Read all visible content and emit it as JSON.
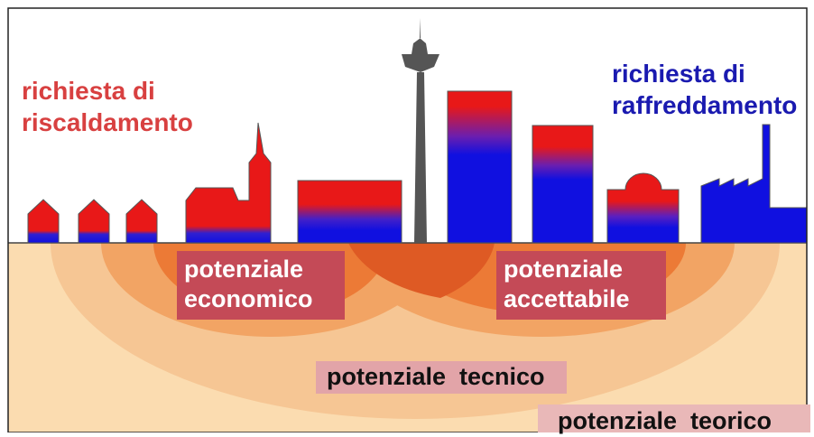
{
  "labels": {
    "heating": [
      "richiesta di",
      "riscaldamento"
    ],
    "cooling": [
      "richiesta di",
      "raffreddamento"
    ],
    "economic": [
      "potenziale",
      "economico"
    ],
    "acceptable": [
      "potenziale",
      "accettabile"
    ],
    "technical": "potenziale  tecnico",
    "theoretical": "potenziale  teorico"
  },
  "colors": {
    "heating_red": "#e81818",
    "cooling_blue": "#1010e0",
    "ground": "#fbdcb0",
    "outer_zone": "#f6c694",
    "technical_zone": "#f2a464",
    "economic_zone": "#ec7a36",
    "overlap_zone": "#de5a24",
    "tower_grey": "#555555",
    "heating_text": "#d84040",
    "cooling_text": "#1a1ab0",
    "label_box": "#c44a57"
  }
}
